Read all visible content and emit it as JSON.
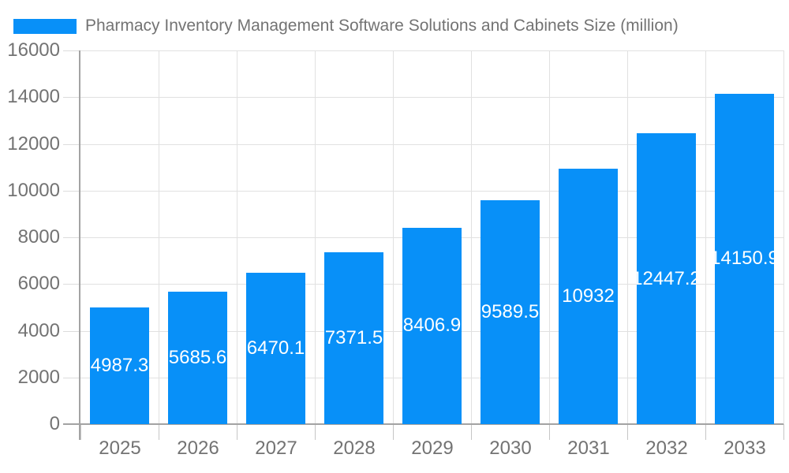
{
  "chart_data": {
    "type": "bar",
    "title": "Pharmacy Inventory Management Software Solutions and Cabinets Size (million)",
    "legend": {
      "position": "top-left",
      "entries": [
        "Pharmacy Inventory Management Software Solutions and Cabinets Size (million)"
      ]
    },
    "categories": [
      "2025",
      "2026",
      "2027",
      "2028",
      "2029",
      "2030",
      "2031",
      "2032",
      "2033"
    ],
    "values": [
      4987.3,
      5685.6,
      6470.1,
      7371.5,
      8406.9,
      9589.5,
      10932,
      12447.2,
      14150.9
    ],
    "bar_value_labels": [
      "4987.3",
      "5685.6",
      "6470.1",
      "7371.5",
      "8406.9",
      "9589.5",
      "10932",
      "12447.2",
      "14150.9"
    ],
    "xlabel": "",
    "ylabel": "",
    "ylim": [
      0,
      16000
    ],
    "ytick_step": 2000,
    "ytick_labels": [
      "0",
      "2000",
      "4000",
      "6000",
      "8000",
      "10000",
      "12000",
      "14000",
      "16000"
    ],
    "grid": "horizontal-and-vertical",
    "colors": {
      "bar": "#0890f8",
      "bar_label_text": "#ffffff",
      "axis_line": "#a3a3a3",
      "gridline": "#e1e1e1",
      "tick": "#c6c6c6",
      "text": "#737373",
      "background": "#ffffff"
    }
  }
}
